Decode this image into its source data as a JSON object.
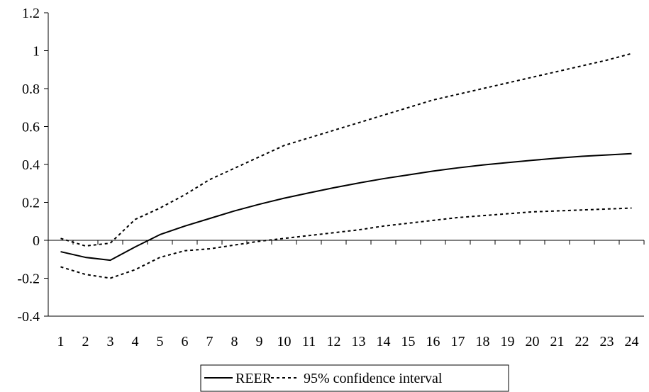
{
  "chart_data": {
    "type": "line",
    "x": [
      1,
      2,
      3,
      4,
      5,
      6,
      7,
      8,
      9,
      10,
      11,
      12,
      13,
      14,
      15,
      16,
      17,
      18,
      19,
      20,
      21,
      22,
      23,
      24
    ],
    "ylim": [
      -0.4,
      1.2
    ],
    "yticks": [
      "-0.4",
      "-0.2",
      "0",
      "0.2",
      "0.4",
      "0.6",
      "0.8",
      "1",
      "1.2"
    ],
    "xticks": [
      "1",
      "2",
      "3",
      "4",
      "5",
      "6",
      "7",
      "8",
      "9",
      "10",
      "11",
      "12",
      "13",
      "14",
      "15",
      "16",
      "17",
      "18",
      "19",
      "20",
      "21",
      "22",
      "23",
      "24"
    ],
    "grid": false,
    "legend_position": "bottom-center",
    "series": [
      {
        "name": "REER",
        "style": "solid",
        "color": "#000000",
        "values": [
          -0.06,
          -0.09,
          -0.105,
          -0.035,
          0.03,
          0.075,
          0.115,
          0.155,
          0.19,
          0.222,
          0.25,
          0.277,
          0.302,
          0.325,
          0.345,
          0.365,
          0.382,
          0.397,
          0.41,
          0.422,
          0.433,
          0.443,
          0.45,
          0.457
        ]
      },
      {
        "name": "95% confidence interval",
        "style": "dashed",
        "color": "#000000",
        "values": [
          0.01,
          -0.03,
          -0.015,
          0.11,
          0.17,
          0.24,
          0.32,
          0.38,
          0.44,
          0.5,
          0.54,
          0.58,
          0.62,
          0.66,
          0.7,
          0.74,
          0.77,
          0.8,
          0.83,
          0.86,
          0.89,
          0.92,
          0.95,
          0.985
        ]
      },
      {
        "name": "95% confidence interval (lower)",
        "style": "dashed",
        "color": "#000000",
        "legend": false,
        "values": [
          -0.14,
          -0.18,
          -0.2,
          -0.155,
          -0.09,
          -0.055,
          -0.045,
          -0.025,
          -0.005,
          0.01,
          0.025,
          0.04,
          0.055,
          0.075,
          0.09,
          0.105,
          0.12,
          0.13,
          0.14,
          0.15,
          0.155,
          0.16,
          0.165,
          0.17
        ]
      }
    ],
    "legend": [
      {
        "label": "REER",
        "style": "solid"
      },
      {
        "label": "95% confidence interval",
        "style": "dashed"
      }
    ]
  }
}
